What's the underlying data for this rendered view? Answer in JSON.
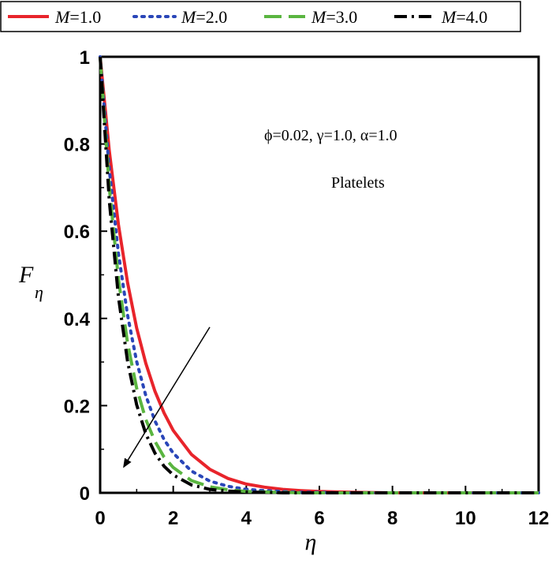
{
  "chart_data": {
    "type": "line",
    "title": "",
    "xlabel": "η",
    "ylabel": {
      "main": "F",
      "sub": "η"
    },
    "xlim": [
      0,
      12
    ],
    "ylim": [
      0,
      1
    ],
    "xticks": [
      "0",
      "2",
      "4",
      "6",
      "8",
      "10",
      "12"
    ],
    "yticks": [
      "0",
      "0.2",
      "0.4",
      "0.6",
      "0.8",
      "1"
    ],
    "grid": false,
    "legend_position": "top",
    "annotations": [
      {
        "name": "params",
        "text": "ϕ=0.02, γ=1.0, α=1.0"
      },
      {
        "name": "label",
        "text": "Platelets"
      }
    ],
    "arrow": {
      "from": [
        3.0,
        0.38
      ],
      "to": [
        0.65,
        0.06
      ]
    },
    "series": [
      {
        "name": "M=1.0",
        "var": "M",
        "val": "=1.0",
        "color": "#e8242b",
        "dash": "solid",
        "x": [
          0,
          0.25,
          0.5,
          0.75,
          1,
          1.25,
          1.5,
          1.75,
          2,
          2.5,
          3,
          3.5,
          4,
          4.5,
          5,
          5.5,
          6,
          6.5,
          7,
          8,
          9,
          10,
          11,
          12
        ],
        "y": [
          1.0,
          0.784,
          0.615,
          0.482,
          0.378,
          0.297,
          0.233,
          0.183,
          0.143,
          0.088,
          0.054,
          0.033,
          0.02,
          0.013,
          0.008,
          0.005,
          0.003,
          0.002,
          0.001,
          0.0,
          0.0,
          0.0,
          0.0,
          0.0
        ]
      },
      {
        "name": "M=2.0",
        "var": "M",
        "val": "=2.0",
        "color": "#2a46b8",
        "dash": "dot",
        "x": [
          0,
          0.25,
          0.5,
          0.75,
          1,
          1.25,
          1.5,
          1.75,
          2,
          2.5,
          3,
          3.5,
          4,
          4.5,
          5,
          5.5,
          6,
          6.5,
          7,
          8,
          9,
          10,
          11,
          12
        ],
        "y": [
          1.0,
          0.741,
          0.549,
          0.407,
          0.301,
          0.223,
          0.165,
          0.122,
          0.091,
          0.05,
          0.027,
          0.015,
          0.008,
          0.005,
          0.003,
          0.001,
          0.001,
          0.0,
          0.0,
          0.0,
          0.0,
          0.0,
          0.0,
          0.0
        ]
      },
      {
        "name": "M=3.0",
        "var": "M",
        "val": "=3.0",
        "color": "#5ab540",
        "dash": "dash",
        "x": [
          0,
          0.25,
          0.5,
          0.75,
          1,
          1.25,
          1.5,
          1.75,
          2,
          2.5,
          3,
          3.5,
          4,
          4.5,
          5,
          5.5,
          6,
          6.5,
          7,
          8,
          9,
          10,
          11,
          12
        ],
        "y": [
          1.0,
          0.7,
          0.49,
          0.343,
          0.24,
          0.168,
          0.118,
          0.082,
          0.058,
          0.028,
          0.014,
          0.007,
          0.003,
          0.002,
          0.001,
          0.0,
          0.0,
          0.0,
          0.0,
          0.0,
          0.0,
          0.0,
          0.0,
          0.0
        ]
      },
      {
        "name": "M=4.0",
        "var": "M",
        "val": "=4.0",
        "color": "#000000",
        "dash": "dashdot",
        "x": [
          0,
          0.25,
          0.5,
          0.75,
          1,
          1.25,
          1.5,
          1.75,
          2,
          2.5,
          3,
          3.5,
          4,
          4.5,
          5,
          5.5,
          6,
          6.5,
          7,
          8,
          9,
          10,
          11,
          12
        ],
        "y": [
          1.0,
          0.67,
          0.449,
          0.301,
          0.202,
          0.135,
          0.091,
          0.061,
          0.041,
          0.018,
          0.008,
          0.004,
          0.002,
          0.001,
          0.0,
          0.0,
          0.0,
          0.0,
          0.0,
          0.0,
          0.0,
          0.0,
          0.0,
          0.0
        ]
      }
    ]
  }
}
